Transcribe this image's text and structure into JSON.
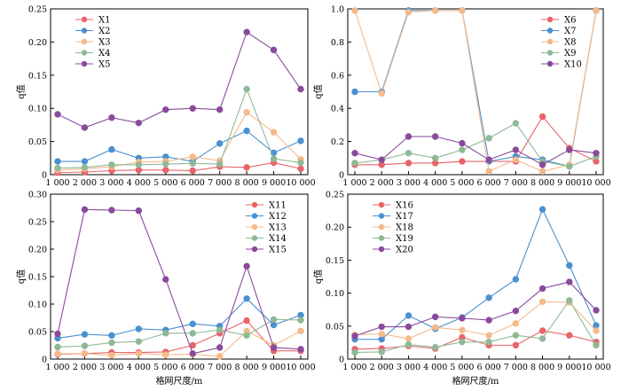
{
  "chart_data": [
    {
      "type": "line",
      "x": [
        "1 000",
        "2 000",
        "3 000",
        "4 000",
        "5 000",
        "6 000",
        "7 000",
        "8 000",
        "9 000",
        "10 000"
      ],
      "ylabel": "q值",
      "xlabel": "",
      "ylim": [
        0,
        0.25
      ],
      "yticks": [
        "0",
        "0.05",
        "0.10",
        "0.15",
        "0.20",
        "0.25"
      ],
      "legend_position": "top-left",
      "series": [
        {
          "name": "X1",
          "color": "#e8646a",
          "values": [
            0.003,
            0.004,
            0.006,
            0.007,
            0.007,
            0.006,
            0.012,
            0.011,
            0.018,
            0.009
          ]
        },
        {
          "name": "X2",
          "color": "#4a90d0",
          "values": [
            0.02,
            0.02,
            0.038,
            0.025,
            0.027,
            0.02,
            0.047,
            0.066,
            0.033,
            0.051
          ]
        },
        {
          "name": "X3",
          "color": "#f5b98a",
          "values": [
            0.007,
            0.009,
            0.012,
            0.019,
            0.02,
            0.027,
            0.021,
            0.094,
            0.064,
            0.023
          ]
        },
        {
          "name": "X4",
          "color": "#8fb996",
          "values": [
            0.01,
            0.011,
            0.015,
            0.015,
            0.016,
            0.017,
            0.016,
            0.129,
            0.024,
            0.018
          ]
        },
        {
          "name": "X5",
          "color": "#8a4a9c",
          "values": [
            0.091,
            0.071,
            0.086,
            0.078,
            0.098,
            0.1,
            0.098,
            0.215,
            0.188,
            0.129
          ]
        }
      ]
    },
    {
      "type": "line",
      "x": [
        "1 000",
        "2 000",
        "3 000",
        "4 000",
        "5 000",
        "6 000",
        "7 000",
        "8 000",
        "9 000",
        "10 000"
      ],
      "ylabel": "q值",
      "xlabel": "",
      "ylim": [
        0,
        1.0
      ],
      "yticks": [
        "0",
        "0.2",
        "0.4",
        "0.6",
        "0.8",
        "1.0"
      ],
      "legend_position": "top-right",
      "series": [
        {
          "name": "X6",
          "color": "#e8646a",
          "values": [
            0.06,
            0.06,
            0.07,
            0.07,
            0.08,
            0.08,
            0.08,
            0.35,
            0.16,
            0.08
          ]
        },
        {
          "name": "X7",
          "color": "#4a90d0",
          "values": [
            0.5,
            0.5,
            0.99,
            0.99,
            0.99,
            0.08,
            0.11,
            0.09,
            0.05,
            0.99
          ]
        },
        {
          "name": "X8",
          "color": "#f5b98a",
          "values": [
            0.99,
            0.49,
            0.98,
            0.99,
            0.99,
            0.02,
            0.09,
            0.02,
            0.06,
            0.99
          ]
        },
        {
          "name": "X9",
          "color": "#8fb996",
          "values": [
            0.07,
            0.09,
            0.13,
            0.1,
            0.15,
            0.22,
            0.31,
            0.08,
            0.05,
            0.11
          ]
        },
        {
          "name": "X10",
          "color": "#8a4a9c",
          "values": [
            0.13,
            0.09,
            0.23,
            0.23,
            0.19,
            0.09,
            0.15,
            0.06,
            0.15,
            0.13
          ]
        }
      ]
    },
    {
      "type": "line",
      "x": [
        "1 000",
        "2 000",
        "3 000",
        "4 000",
        "5 000",
        "6 000",
        "7 000",
        "8 000",
        "9 000",
        "10 000"
      ],
      "ylabel": "q值",
      "xlabel": "格网尺度/m",
      "ylim": [
        0,
        0.3
      ],
      "yticks": [
        "0",
        "0.05",
        "0.10",
        "0.15",
        "0.20",
        "0.25",
        "0.30"
      ],
      "legend_position": "top-right",
      "series": [
        {
          "name": "X11",
          "color": "#e8646a",
          "values": [
            0.009,
            0.01,
            0.012,
            0.012,
            0.013,
            0.025,
            0.047,
            0.07,
            0.015,
            0.015
          ]
        },
        {
          "name": "X12",
          "color": "#4a90d0",
          "values": [
            0.038,
            0.045,
            0.043,
            0.055,
            0.053,
            0.064,
            0.06,
            0.11,
            0.062,
            0.08
          ]
        },
        {
          "name": "X13",
          "color": "#f5b98a",
          "values": [
            0.01,
            0.01,
            0.007,
            0.01,
            0.008,
            0.009,
            0.005,
            0.051,
            0.025,
            0.051
          ]
        },
        {
          "name": "X14",
          "color": "#8fb996",
          "values": [
            0.022,
            0.024,
            0.03,
            0.032,
            0.047,
            0.047,
            0.053,
            0.043,
            0.072,
            0.071
          ]
        },
        {
          "name": "X15",
          "color": "#8a4a9c",
          "values": [
            0.046,
            0.272,
            0.271,
            0.27,
            0.145,
            0.01,
            0.021,
            0.169,
            0.021,
            0.018
          ]
        }
      ]
    },
    {
      "type": "line",
      "x": [
        "1 000",
        "2 000",
        "3 000",
        "4 000",
        "5 000",
        "6 000",
        "7 000",
        "8 000",
        "9 000",
        "10 000"
      ],
      "ylabel": "q值",
      "xlabel": "格网尺度/m",
      "ylim": [
        0,
        0.25
      ],
      "yticks": [
        "0",
        "0.05",
        "0.10",
        "0.15",
        "0.20",
        "0.25"
      ],
      "legend_position": "top-left",
      "series": [
        {
          "name": "X16",
          "color": "#e8646a",
          "values": [
            0.015,
            0.016,
            0.02,
            0.016,
            0.033,
            0.021,
            0.021,
            0.043,
            0.036,
            0.026
          ]
        },
        {
          "name": "X17",
          "color": "#4a90d0",
          "values": [
            0.03,
            0.03,
            0.066,
            0.046,
            0.063,
            0.093,
            0.121,
            0.227,
            0.142,
            0.051
          ]
        },
        {
          "name": "X18",
          "color": "#f5b98a",
          "values": [
            0.037,
            0.038,
            0.031,
            0.048,
            0.044,
            0.036,
            0.054,
            0.087,
            0.086,
            0.043
          ]
        },
        {
          "name": "X19",
          "color": "#8fb996",
          "values": [
            0.01,
            0.011,
            0.022,
            0.018,
            0.026,
            0.026,
            0.036,
            0.031,
            0.089,
            0.021
          ]
        },
        {
          "name": "X20",
          "color": "#8a4a9c",
          "values": [
            0.035,
            0.049,
            0.049,
            0.064,
            0.062,
            0.059,
            0.073,
            0.107,
            0.117,
            0.074
          ]
        }
      ]
    }
  ]
}
